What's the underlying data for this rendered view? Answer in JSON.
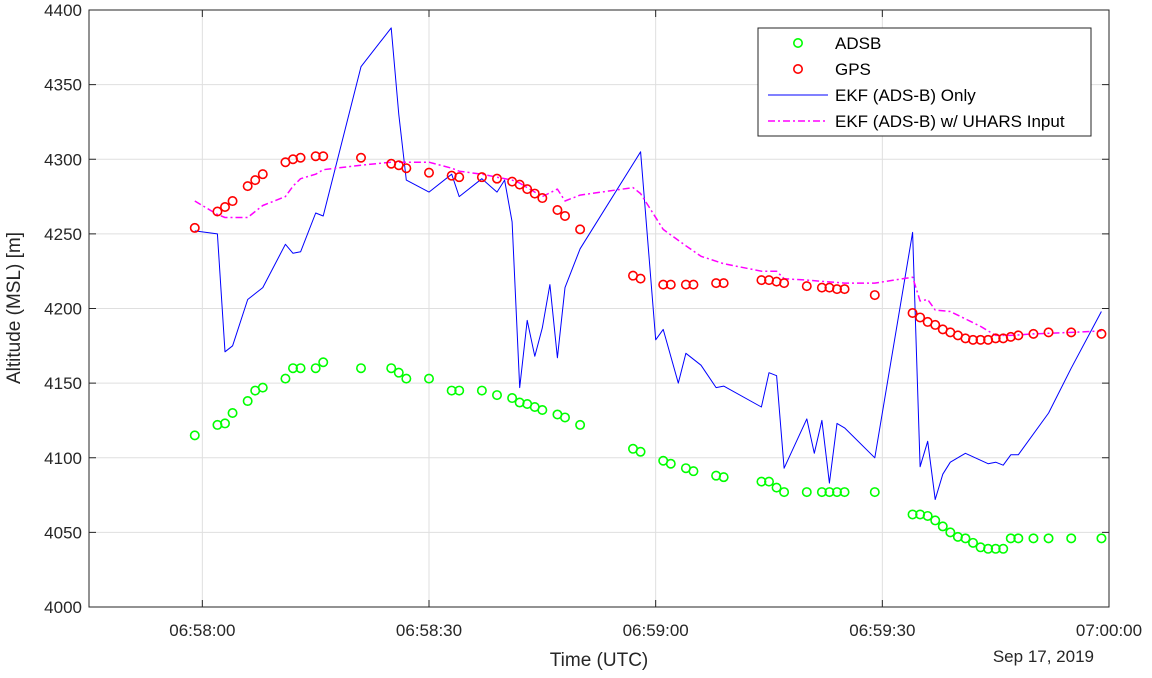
{
  "chart_data": {
    "type": "line",
    "xlabel": "Time (UTC)",
    "ylabel": "Altitude (MSL) [m]",
    "date_label": "Sep 17, 2019",
    "xlim": [
      "06:57:45",
      "07:00:00"
    ],
    "ylim": [
      4000,
      4400
    ],
    "x_ticks": [
      "06:58:00",
      "06:58:30",
      "06:59:00",
      "06:59:30",
      "07:00:00"
    ],
    "y_ticks": [
      4000,
      4050,
      4100,
      4150,
      4200,
      4250,
      4300,
      4350,
      4400
    ],
    "grid": true,
    "legend_position": "top-right",
    "series": [
      {
        "name": "ADSB",
        "style": "marker-circle",
        "color": "#00ff00",
        "x": [
          "06:57:59",
          "06:58:02",
          "06:58:03",
          "06:58:04",
          "06:58:06",
          "06:58:07",
          "06:58:08",
          "06:58:11",
          "06:58:12",
          "06:58:13",
          "06:58:15",
          "06:58:16",
          "06:58:21",
          "06:58:25",
          "06:58:26",
          "06:58:27",
          "06:58:30",
          "06:58:33",
          "06:58:34",
          "06:58:37",
          "06:58:39",
          "06:58:41",
          "06:58:42",
          "06:58:43",
          "06:58:44",
          "06:58:45",
          "06:58:47",
          "06:58:48",
          "06:58:50",
          "06:58:57",
          "06:58:58",
          "06:59:01",
          "06:59:02",
          "06:59:04",
          "06:59:05",
          "06:59:08",
          "06:59:09",
          "06:59:14",
          "06:59:15",
          "06:59:16",
          "06:59:17",
          "06:59:20",
          "06:59:22",
          "06:59:23",
          "06:59:24",
          "06:59:25",
          "06:59:29",
          "06:59:34",
          "06:59:35",
          "06:59:36",
          "06:59:37",
          "06:59:38",
          "06:59:39",
          "06:59:40",
          "06:59:41",
          "06:59:42",
          "06:59:43",
          "06:59:44",
          "06:59:45",
          "06:59:46",
          "06:59:47",
          "06:59:48",
          "06:59:50",
          "06:59:52",
          "06:59:55",
          "06:59:59"
        ],
        "y": [
          4115,
          4122,
          4123,
          4130,
          4138,
          4145,
          4147,
          4153,
          4160,
          4160,
          4160,
          4164,
          4160,
          4160,
          4157,
          4153,
          4153,
          4145,
          4145,
          4145,
          4142,
          4140,
          4137,
          4136,
          4134,
          4132,
          4129,
          4127,
          4122,
          4106,
          4104,
          4098,
          4096,
          4093,
          4091,
          4088,
          4087,
          4084,
          4084,
          4080,
          4077,
          4077,
          4077,
          4077,
          4077,
          4077,
          4077,
          4062,
          4062,
          4061,
          4058,
          4054,
          4050,
          4047,
          4046,
          4043,
          4040,
          4039,
          4039,
          4039,
          4046,
          4046,
          4046,
          4046,
          4046,
          4046
        ]
      },
      {
        "name": "GPS",
        "style": "marker-circle",
        "color": "#ff0000",
        "x": [
          "06:57:59",
          "06:58:02",
          "06:58:03",
          "06:58:04",
          "06:58:06",
          "06:58:07",
          "06:58:08",
          "06:58:11",
          "06:58:12",
          "06:58:13",
          "06:58:15",
          "06:58:16",
          "06:58:21",
          "06:58:25",
          "06:58:26",
          "06:58:27",
          "06:58:30",
          "06:58:33",
          "06:58:34",
          "06:58:37",
          "06:58:39",
          "06:58:41",
          "06:58:42",
          "06:58:43",
          "06:58:44",
          "06:58:45",
          "06:58:47",
          "06:58:48",
          "06:58:50",
          "06:58:57",
          "06:58:58",
          "06:59:01",
          "06:59:02",
          "06:59:04",
          "06:59:05",
          "06:59:08",
          "06:59:09",
          "06:59:14",
          "06:59:15",
          "06:59:16",
          "06:59:17",
          "06:59:20",
          "06:59:22",
          "06:59:23",
          "06:59:24",
          "06:59:25",
          "06:59:29",
          "06:59:34",
          "06:59:35",
          "06:59:36",
          "06:59:37",
          "06:59:38",
          "06:59:39",
          "06:59:40",
          "06:59:41",
          "06:59:42",
          "06:59:43",
          "06:59:44",
          "06:59:45",
          "06:59:46",
          "06:59:47",
          "06:59:48",
          "06:59:50",
          "06:59:52",
          "06:59:55",
          "06:59:59"
        ],
        "y": [
          4254,
          4265,
          4268,
          4272,
          4282,
          4286,
          4290,
          4298,
          4300,
          4301,
          4302,
          4302,
          4301,
          4297,
          4296,
          4294,
          4291,
          4289,
          4288,
          4288,
          4287,
          4285,
          4283,
          4280,
          4277,
          4274,
          4266,
          4262,
          4253,
          4222,
          4220,
          4216,
          4216,
          4216,
          4216,
          4217,
          4217,
          4219,
          4219,
          4218,
          4217,
          4215,
          4214,
          4214,
          4213,
          4213,
          4209,
          4197,
          4194,
          4191,
          4189,
          4186,
          4184,
          4182,
          4180,
          4179,
          4179,
          4179,
          4180,
          4180,
          4181,
          4182,
          4183,
          4184,
          4184,
          4183
        ]
      },
      {
        "name": "EKF (ADS-B) Only",
        "style": "solid",
        "color": "#0000ff",
        "x": [
          "06:57:59",
          "06:58:02",
          "06:58:03",
          "06:58:04",
          "06:58:06",
          "06:58:08",
          "06:58:11",
          "06:58:12",
          "06:58:13",
          "06:58:15",
          "06:58:16",
          "06:58:21",
          "06:58:25",
          "06:58:26",
          "06:58:27",
          "06:58:30",
          "06:58:33",
          "06:58:34",
          "06:58:37",
          "06:58:39",
          "06:58:40",
          "06:58:41",
          "06:58:42",
          "06:58:43",
          "06:58:44",
          "06:58:45",
          "06:58:46",
          "06:58:47",
          "06:58:48",
          "06:58:50",
          "06:58:58",
          "06:59:00",
          "06:59:01",
          "06:59:03",
          "06:59:04",
          "06:59:06",
          "06:59:08",
          "06:59:09",
          "06:59:14",
          "06:59:15",
          "06:59:16",
          "06:59:17",
          "06:59:20",
          "06:59:21",
          "06:59:22",
          "06:59:23",
          "06:59:24",
          "06:59:25",
          "06:59:29",
          "06:59:34",
          "06:59:35",
          "06:59:36",
          "06:59:37",
          "06:59:38",
          "06:59:39",
          "06:59:41",
          "06:59:44",
          "06:59:45",
          "06:59:46",
          "06:59:47",
          "06:59:48",
          "06:59:52",
          "06:59:55",
          "06:59:59"
        ],
        "y": [
          4252,
          4250,
          4171,
          4175,
          4206,
          4214,
          4243,
          4237,
          4238,
          4264,
          4262,
          4362,
          4388,
          4330,
          4286,
          4278,
          4290,
          4275,
          4287,
          4278,
          4286,
          4258,
          4147,
          4192,
          4168,
          4187,
          4216,
          4167,
          4214,
          4240,
          4305,
          4179,
          4186,
          4150,
          4170,
          4162,
          4147,
          4148,
          4134,
          4157,
          4155,
          4093,
          4126,
          4103,
          4125,
          4083,
          4123,
          4120,
          4100,
          4251,
          4094,
          4111,
          4072,
          4089,
          4097,
          4103,
          4096,
          4097,
          4095,
          4102,
          4102,
          4130,
          4160,
          4198
        ]
      },
      {
        "name": "EKF (ADS-B) w/ UHARS Input",
        "style": "dash-dot",
        "color": "#ff00ff",
        "x": [
          "06:57:59",
          "06:58:02",
          "06:58:03",
          "06:58:06",
          "06:58:07",
          "06:58:08",
          "06:58:11",
          "06:58:12",
          "06:58:13",
          "06:58:15",
          "06:58:16",
          "06:58:21",
          "06:58:25",
          "06:58:26",
          "06:58:27",
          "06:58:30",
          "06:58:33",
          "06:58:34",
          "06:58:37",
          "06:58:39",
          "06:58:41",
          "06:58:42",
          "06:58:43",
          "06:58:44",
          "06:58:45",
          "06:58:47",
          "06:58:48",
          "06:58:50",
          "06:58:57",
          "06:58:58",
          "06:59:01",
          "06:59:04",
          "06:59:06",
          "06:59:09",
          "06:59:14",
          "06:59:16",
          "06:59:17",
          "06:59:20",
          "06:59:25",
          "06:59:29",
          "06:59:34",
          "06:59:35",
          "06:59:36",
          "06:59:37",
          "06:59:39",
          "06:59:41",
          "06:59:43",
          "06:59:45",
          "06:59:47",
          "06:59:50",
          "06:59:55",
          "06:59:59"
        ],
        "y": [
          4272,
          4263,
          4261,
          4261,
          4265,
          4269,
          4275,
          4282,
          4287,
          4290,
          4293,
          4296,
          4298,
          4298,
          4298,
          4298,
          4294,
          4292,
          4290,
          4288,
          4286,
          4284,
          4281,
          4278,
          4275,
          4280,
          4272,
          4276,
          4281,
          4277,
          4253,
          4242,
          4235,
          4230,
          4225,
          4225,
          4220,
          4219,
          4217,
          4217,
          4221,
          4205,
          4206,
          4199,
          4198,
          4193,
          4188,
          4182,
          4182,
          4183,
          4184,
          4185
        ]
      }
    ]
  }
}
